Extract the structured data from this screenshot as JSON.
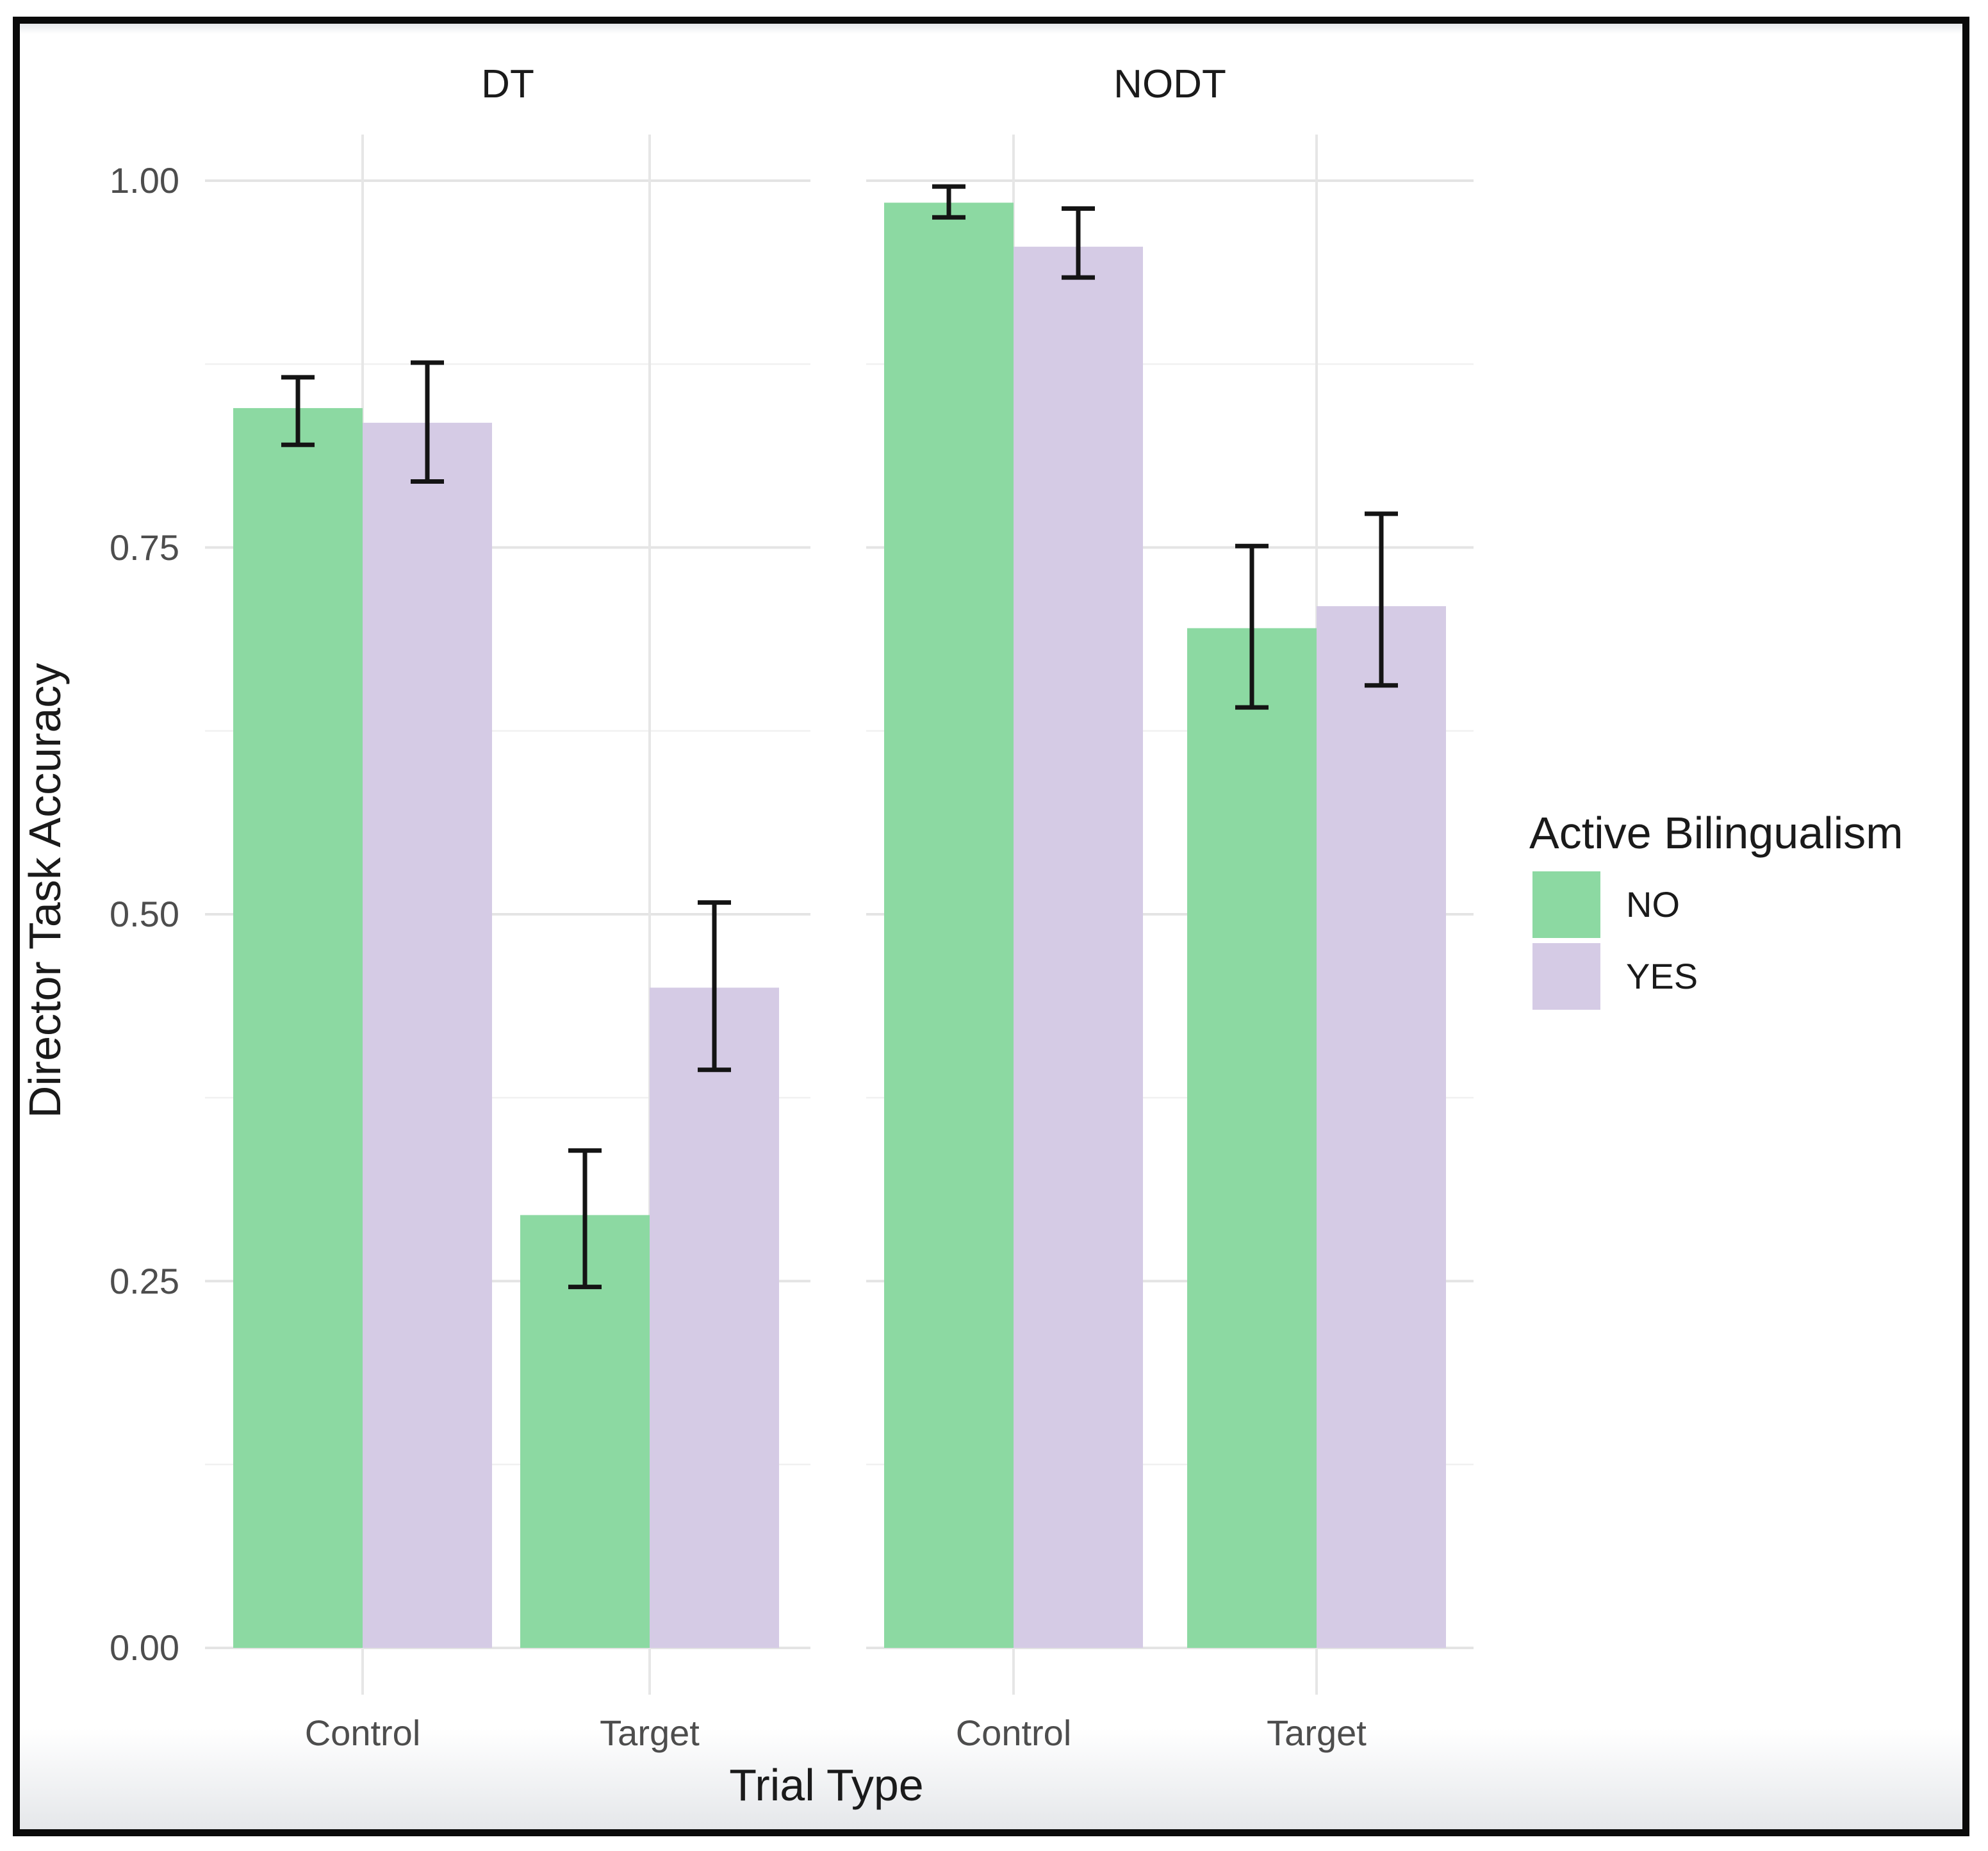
{
  "chart_data": {
    "type": "bar",
    "title": "",
    "xlabel": "Trial Type",
    "ylabel": "Director Task Accuracy",
    "facet_labels": [
      "DT",
      "NODT"
    ],
    "categories": [
      "Control",
      "Target"
    ],
    "ylim": [
      0,
      1.03
    ],
    "yticks": [
      0,
      0.25,
      0.5,
      0.75,
      1.0
    ],
    "ytick_labels": [
      "0.00",
      "0.25",
      "0.50",
      "0.75",
      "1.00"
    ],
    "minor_gridlines": [
      0.125,
      0.375,
      0.625,
      0.875
    ],
    "grid": "horizontal major+minor, vertical major at categories",
    "legend": {
      "title": "Active Bilingualism",
      "position": "right",
      "entries": [
        {
          "label": "NO",
          "color": "#8cd9a2"
        },
        {
          "label": "YES",
          "color": "#d5cbe5"
        }
      ]
    },
    "facets": [
      {
        "label": "DT",
        "series": [
          {
            "name": "NO",
            "color": "#8cd9a2",
            "values": [
              0.845,
              0.295
            ],
            "ci_low": [
              0.82,
              0.246
            ],
            "ci_high": [
              0.866,
              0.339
            ]
          },
          {
            "name": "YES",
            "color": "#d5cbe5",
            "values": [
              0.835,
              0.45
            ],
            "ci_low": [
              0.795,
              0.394
            ],
            "ci_high": [
              0.876,
              0.508
            ]
          }
        ]
      },
      {
        "label": "NODT",
        "series": [
          {
            "name": "NO",
            "color": "#8cd9a2",
            "values": [
              0.985,
              0.695
            ],
            "ci_low": [
              0.975,
              0.641
            ],
            "ci_high": [
              0.996,
              0.751
            ]
          },
          {
            "name": "YES",
            "color": "#d5cbe5",
            "values": [
              0.955,
              0.71
            ],
            "ci_low": [
              0.934,
              0.656
            ],
            "ci_high": [
              0.981,
              0.773
            ]
          }
        ]
      }
    ]
  },
  "colors": {
    "grid_major": "#e4e4e4",
    "grid_minor": "#f1f1f1",
    "grid_vertical": "#e6e6e6",
    "tick_text": "#4d4d4d",
    "title_text": "#1a1a1a",
    "error_bar": "#141414",
    "frame": "#0a0a0a",
    "background": "#ffffff"
  }
}
